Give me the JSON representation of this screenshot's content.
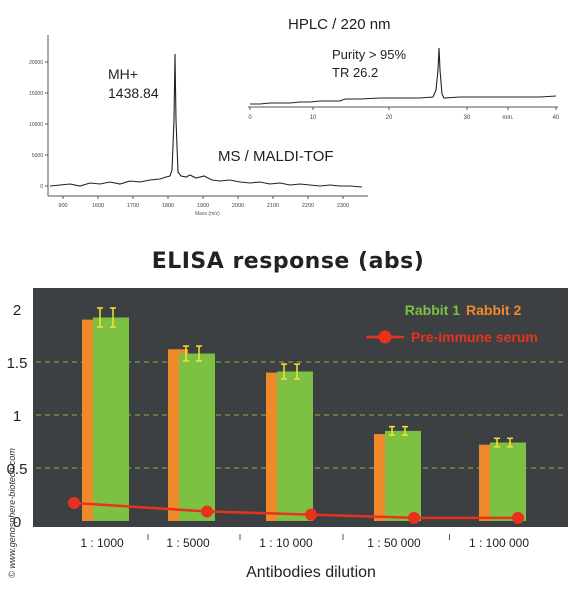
{
  "ms_panel": {
    "label": "MS / MALDI-TOF",
    "peak_label_line1": "MH+",
    "peak_label_line2": "1438.84",
    "x_ticks": [
      "900",
      "1600",
      "1700",
      "1800",
      "1900",
      "2000",
      "2100",
      "2200",
      "2300"
    ],
    "y_ticks": [
      "0",
      "5000",
      "10000",
      "15000",
      "20000"
    ],
    "x_axis_label": "Mass (m/z)"
  },
  "hplc_panel": {
    "label": "HPLC / 220 nm",
    "purity_text": "Purity > 95%",
    "tr_text": "TR 26.2",
    "x_ticks": [
      "0",
      "10",
      "20",
      "30",
      "min.",
      "40"
    ]
  },
  "elisa_title": "ELISA response (abs)",
  "credit": "© www.genosphere-biotech.com",
  "colors": {
    "rabbit1": "#7dc142",
    "rabbit2": "#ee8a2b",
    "preimmune": "#e8321e",
    "plot_bg": "#3d4042",
    "grid": "#9acd32",
    "error_bar": "#f5e23a"
  },
  "chart_data": {
    "type": "bar",
    "title": "ELISA response (abs)",
    "xlabel": "Antibodies dilution",
    "ylabel": "",
    "categories": [
      "1 : 1000",
      "1 : 5000",
      "1 : 10 000",
      "1 : 50 000",
      "1 : 100 000"
    ],
    "ylim": [
      0,
      2
    ],
    "y_ticks": [
      "0",
      "0.5",
      "1",
      "1.5",
      "2"
    ],
    "grid": "dashed horizontal",
    "legend_placement": "top-right",
    "series": [
      {
        "name": "Rabbit 2",
        "kind": "bar",
        "values": [
          1.9,
          1.62,
          1.4,
          0.82,
          0.72
        ],
        "errors": [
          0,
          0,
          0,
          0,
          0
        ]
      },
      {
        "name": "Rabbit 1",
        "kind": "bar",
        "values": [
          1.92,
          1.58,
          1.41,
          0.85,
          0.74
        ],
        "errors": [
          0.09,
          0.07,
          0.07,
          0.04,
          0.04
        ]
      },
      {
        "name": "Pre-immune serum",
        "kind": "line",
        "values": [
          0.17,
          0.09,
          0.06,
          0.03,
          0.03
        ]
      }
    ]
  }
}
